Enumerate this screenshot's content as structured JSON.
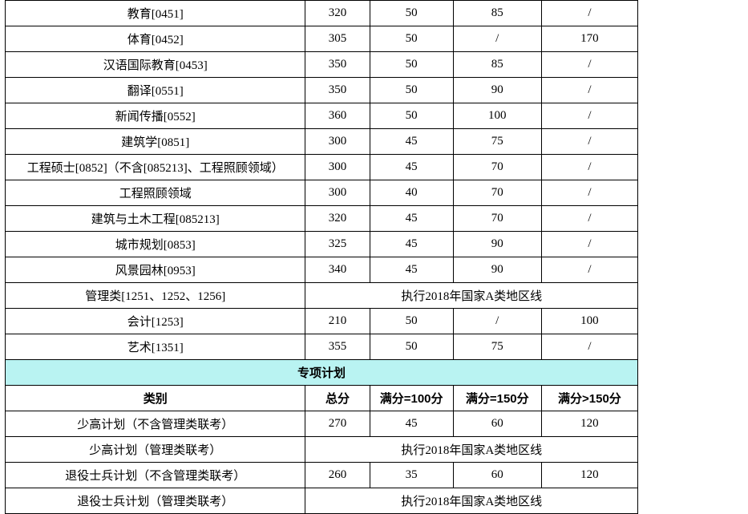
{
  "table": {
    "columns": {
      "widths": [
        374,
        80,
        104,
        110,
        120
      ]
    },
    "border_color": "#000000",
    "background_color": "#ffffff",
    "section_header_bg": "#b9f3f2",
    "font_family": "SimSun",
    "font_size": 15,
    "rows": [
      {
        "type": "data",
        "cells": [
          "教育[0451]",
          "320",
          "50",
          "85",
          "/"
        ]
      },
      {
        "type": "data",
        "cells": [
          "体育[0452]",
          "305",
          "50",
          "/",
          "170"
        ]
      },
      {
        "type": "data",
        "cells": [
          "汉语国际教育[0453]",
          "350",
          "50",
          "85",
          "/"
        ]
      },
      {
        "type": "data",
        "cells": [
          "翻译[0551]",
          "350",
          "50",
          "90",
          "/"
        ]
      },
      {
        "type": "data",
        "cells": [
          "新闻传播[0552]",
          "360",
          "50",
          "100",
          "/"
        ]
      },
      {
        "type": "data",
        "cells": [
          "建筑学[0851]",
          "300",
          "45",
          "75",
          "/"
        ]
      },
      {
        "type": "data",
        "cells": [
          "工程硕士[0852]（不含[085213]、工程照顾领域）",
          "300",
          "45",
          "70",
          "/"
        ]
      },
      {
        "type": "data",
        "cells": [
          "工程照顾领域",
          "300",
          "40",
          "70",
          "/"
        ]
      },
      {
        "type": "data",
        "cells": [
          "建筑与土木工程[085213]",
          "320",
          "45",
          "70",
          "/"
        ]
      },
      {
        "type": "data",
        "cells": [
          "城市规划[0853]",
          "325",
          "45",
          "90",
          "/"
        ]
      },
      {
        "type": "data",
        "cells": [
          "风景园林[0953]",
          "340",
          "45",
          "90",
          "/"
        ]
      },
      {
        "type": "merged",
        "label": "管理类[1251、1252、1256]",
        "merge_text": "执行2018年国家A类地区线"
      },
      {
        "type": "data",
        "cells": [
          "会计[1253]",
          "210",
          "50",
          "/",
          "100"
        ]
      },
      {
        "type": "data",
        "cells": [
          "艺术[1351]",
          "355",
          "50",
          "75",
          "/"
        ]
      },
      {
        "type": "section",
        "label": "专项计划"
      },
      {
        "type": "header",
        "cells": [
          "类别",
          "总分",
          "满分=100分",
          "满分=150分",
          "满分>150分"
        ]
      },
      {
        "type": "data",
        "cells": [
          "少高计划（不含管理类联考）",
          "270",
          "45",
          "60",
          "120"
        ]
      },
      {
        "type": "merged",
        "label": "少高计划（管理类联考）",
        "merge_text": "执行2018年国家A类地区线"
      },
      {
        "type": "data",
        "cells": [
          "退役士兵计划（不含管理类联考）",
          "260",
          "35",
          "60",
          "120"
        ]
      },
      {
        "type": "merged",
        "label": "退役士兵计划（管理类联考）",
        "merge_text": "执行2018年国家A类地区线"
      }
    ]
  }
}
